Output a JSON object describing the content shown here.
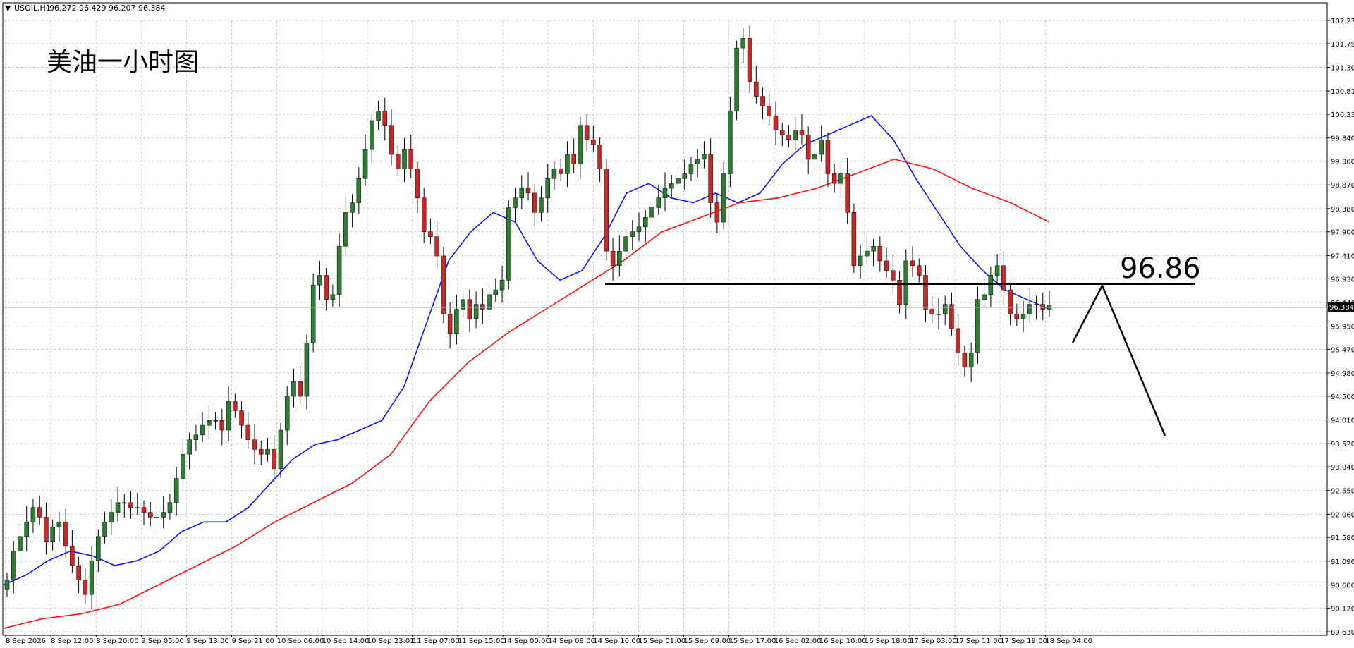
{
  "header": {
    "arrow": "▼",
    "symbol": "USOIL,H1",
    "ohlc": "96.272 96.429 96.207 96.384"
  },
  "annotation": {
    "title": "美油一小时图",
    "level_label": "96.86"
  },
  "current_price": "96.384",
  "colors": {
    "bull": "#2e7d32",
    "bear": "#c62828",
    "ma_fast": "#0a12ff",
    "ma_slow": "#ff1010",
    "grid": "#c8c8c8",
    "line": "#000000"
  },
  "chart_data": {
    "type": "candlestick",
    "symbol": "USOIL",
    "timeframe": "H1",
    "ylim": [
      89.63,
      102.27
    ],
    "grid": true,
    "y_ticks": [
      "102.270",
      "101.790",
      "101.300",
      "100.810",
      "100.330",
      "99.840",
      "99.360",
      "98.870",
      "98.380",
      "97.900",
      "97.410",
      "96.930",
      "96.440",
      "95.950",
      "95.470",
      "94.980",
      "94.500",
      "94.010",
      "93.520",
      "93.040",
      "92.550",
      "92.060",
      "91.580",
      "91.090",
      "90.600",
      "90.120",
      "89.630"
    ],
    "x_ticks": [
      "8 Sep 2026",
      "8 Sep 12:00",
      "8 Sep 20:00",
      "9 Sep 05:00",
      "9 Sep 13:00",
      "9 Sep 21:00",
      "10 Sep 06:00",
      "10 Sep 14:00",
      "10 Sep 23:01",
      "11 Sep 07:00",
      "11 Sep 15:00",
      "14 Sep 00:00",
      "14 Sep 08:00",
      "14 Sep 16:00",
      "15 Sep 01:00",
      "15 Sep 09:00",
      "15 Sep 17:00",
      "16 Sep 02:00",
      "16 Sep 10:00",
      "16 Sep 18:00",
      "17 Sep 03:00",
      "17 Sep 11:00",
      "17 Sep 19:00",
      "18 Sep 04:00"
    ],
    "candle_closes": [
      90.7,
      91.3,
      91.6,
      91.9,
      92.2,
      92.0,
      91.5,
      91.8,
      91.9,
      91.4,
      91.0,
      90.7,
      90.4,
      91.1,
      91.6,
      91.9,
      92.1,
      92.3,
      92.3,
      92.2,
      92.2,
      92.1,
      92.0,
      92.0,
      92.1,
      92.3,
      92.8,
      93.3,
      93.6,
      93.7,
      93.9,
      94.0,
      94.0,
      93.8,
      94.4,
      94.2,
      93.9,
      93.6,
      93.4,
      93.3,
      93.4,
      93.0,
      93.8,
      94.5,
      94.8,
      94.5,
      95.6,
      96.8,
      97.0,
      96.5,
      96.6,
      97.6,
      98.3,
      98.5,
      99.0,
      99.6,
      100.2,
      100.4,
      100.1,
      99.5,
      99.2,
      99.6,
      99.2,
      98.6,
      97.9,
      97.8,
      97.4,
      96.2,
      95.8,
      96.3,
      96.5,
      96.1,
      96.4,
      96.3,
      96.6,
      96.7,
      96.9,
      98.4,
      98.6,
      98.8,
      98.7,
      98.3,
      98.6,
      99.0,
      99.2,
      99.1,
      99.5,
      99.3,
      100.1,
      99.8,
      99.7,
      99.2,
      97.5,
      97.2,
      97.5,
      97.8,
      97.9,
      98.0,
      98.2,
      98.4,
      98.6,
      98.8,
      98.9,
      99.0,
      99.1,
      99.3,
      99.4,
      99.5,
      98.5,
      98.1,
      99.1,
      100.4,
      101.7,
      101.9,
      101.0,
      100.7,
      100.5,
      100.3,
      100.0,
      99.9,
      99.8,
      100.0,
      99.9,
      99.4,
      99.5,
      99.8,
      99.1,
      98.9,
      99.1,
      98.3,
      97.2,
      97.4,
      97.5,
      97.6,
      97.3,
      97.1,
      96.9,
      96.4,
      97.3,
      97.2,
      97.0,
      96.3,
      96.2,
      96.2,
      96.4,
      95.9,
      95.4,
      95.1,
      95.4,
      96.5,
      96.6,
      97.0,
      97.2,
      96.7,
      96.2,
      96.1,
      96.2,
      96.4,
      96.4,
      96.3,
      96.384
    ],
    "series": [
      {
        "name": "MA fast (blue)",
        "values": [
          90.6,
          90.8,
          91.1,
          91.3,
          91.2,
          91.0,
          91.1,
          91.3,
          91.7,
          91.9,
          91.9,
          92.2,
          92.7,
          93.2,
          93.5,
          93.6,
          93.8,
          94.0,
          94.7,
          96.0,
          97.3,
          97.9,
          98.3,
          98.1,
          97.3,
          96.9,
          97.1,
          97.8,
          98.7,
          98.9,
          98.6,
          98.5,
          98.7,
          98.5,
          98.7,
          99.3,
          99.7,
          99.9,
          100.1,
          100.3,
          99.8,
          99.0,
          98.3,
          97.6,
          97.1,
          96.7,
          96.5,
          96.3
        ]
      },
      {
        "name": "MA slow (red)",
        "values": [
          89.7,
          89.9,
          90.0,
          90.2,
          90.6,
          91.0,
          91.4,
          91.9,
          92.3,
          92.7,
          93.3,
          94.4,
          95.2,
          95.8,
          96.3,
          96.8,
          97.3,
          97.9,
          98.2,
          98.5,
          98.6,
          98.8,
          99.1,
          99.4,
          99.2,
          98.8,
          98.5,
          98.1
        ]
      }
    ],
    "horizontal_level": 96.86
  }
}
